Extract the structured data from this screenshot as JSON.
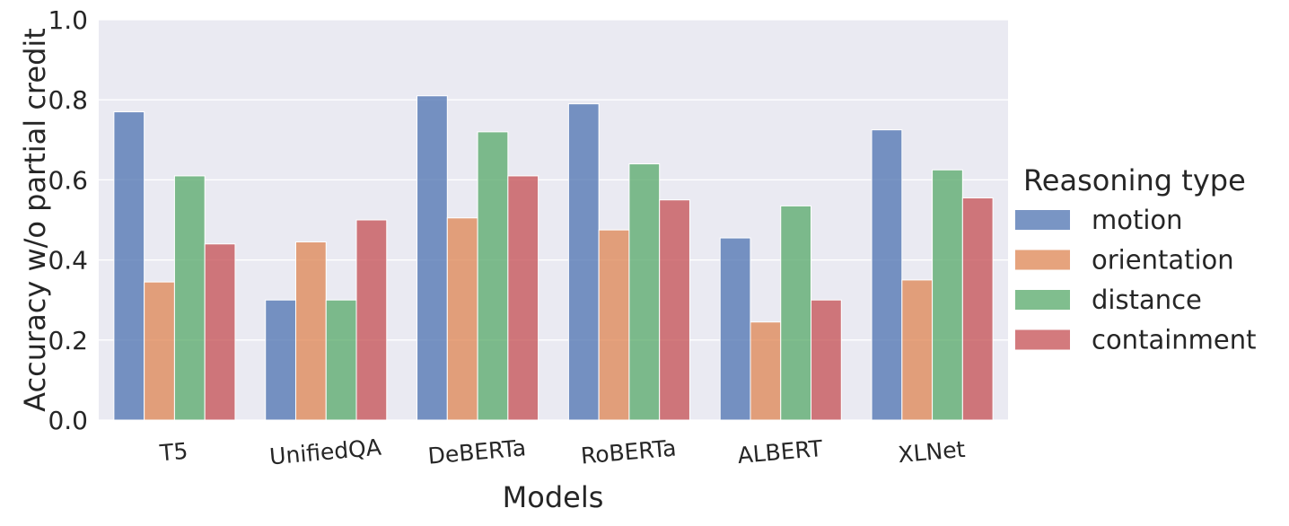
{
  "chart_data": {
    "type": "bar",
    "title": "",
    "xlabel": "Models",
    "ylabel": "Accuracy w/o partial credit",
    "ylim": [
      0,
      1.0
    ],
    "yticks": [
      "0.0",
      "0.2",
      "0.4",
      "0.6",
      "0.8",
      "1.0"
    ],
    "categories": [
      "T5",
      "UnifiedQA",
      "DeBERTa",
      "RoBERTa",
      "ALBERT",
      "XLNet"
    ],
    "series": [
      {
        "name": "motion",
        "color": "#4c72b0",
        "values": [
          0.77,
          0.3,
          0.81,
          0.79,
          0.455,
          0.725
        ]
      },
      {
        "name": "orientation",
        "color": "#dd8452",
        "values": [
          0.345,
          0.445,
          0.505,
          0.475,
          0.245,
          0.35
        ]
      },
      {
        "name": "distance",
        "color": "#55a868",
        "values": [
          0.61,
          0.3,
          0.72,
          0.64,
          0.535,
          0.625
        ]
      },
      {
        "name": "containment",
        "color": "#c44e52",
        "values": [
          0.44,
          0.5,
          0.61,
          0.55,
          0.3,
          0.555
        ]
      }
    ],
    "legend": {
      "title": "Reasoning type",
      "placement": "center-right, outside"
    },
    "grid": true,
    "style": "seaborn darkgrid",
    "background": "#eaeaf2"
  }
}
